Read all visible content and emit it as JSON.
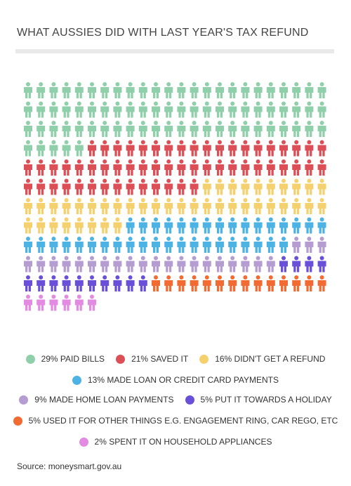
{
  "title": "WHAT AUSSIES DID WITH LAST YEAR'S TAX REFUND",
  "source": "Source: moneysmart.gov.au",
  "chart_data": {
    "type": "pictogram",
    "total_icons": 264,
    "series": [
      {
        "name": "29% PAID BILLS",
        "percent": 29,
        "icons": 77,
        "color": "#8fcfaa"
      },
      {
        "name": "21% SAVED IT",
        "percent": 21,
        "icons": 57,
        "color": "#dd4f57"
      },
      {
        "name": "16% DIDN'T GET A REFUND",
        "percent": 16,
        "icons": 42,
        "color": "#f4d06f"
      },
      {
        "name": "13% MADE LOAN OR CREDIT CARD PAYMENTS",
        "percent": 13,
        "icons": 37,
        "color": "#4db3e4"
      },
      {
        "name": "9% MADE HOME LOAN PAYMENTS",
        "percent": 9,
        "icons": 23,
        "color": "#b59cd1"
      },
      {
        "name": "5% PUT IT TOWARDS A HOLIDAY",
        "percent": 5,
        "icons": 14,
        "color": "#6a4fd8"
      },
      {
        "name": "5% USED IT FOR OTHER THINGS E.G. ENGAGEMENT RING, CAR REGO, ETC",
        "percent": 5,
        "icons": 14,
        "color": "#f26b33"
      },
      {
        "name": "2% SPENT IT ON HOUSEHOLD APPLIANCES",
        "percent": 2,
        "icons": 6,
        "color": "#e38be3"
      }
    ],
    "legend_rows": [
      [
        0,
        1,
        2
      ],
      [
        3
      ],
      [
        4,
        5
      ],
      [
        6
      ],
      [
        7
      ]
    ]
  }
}
